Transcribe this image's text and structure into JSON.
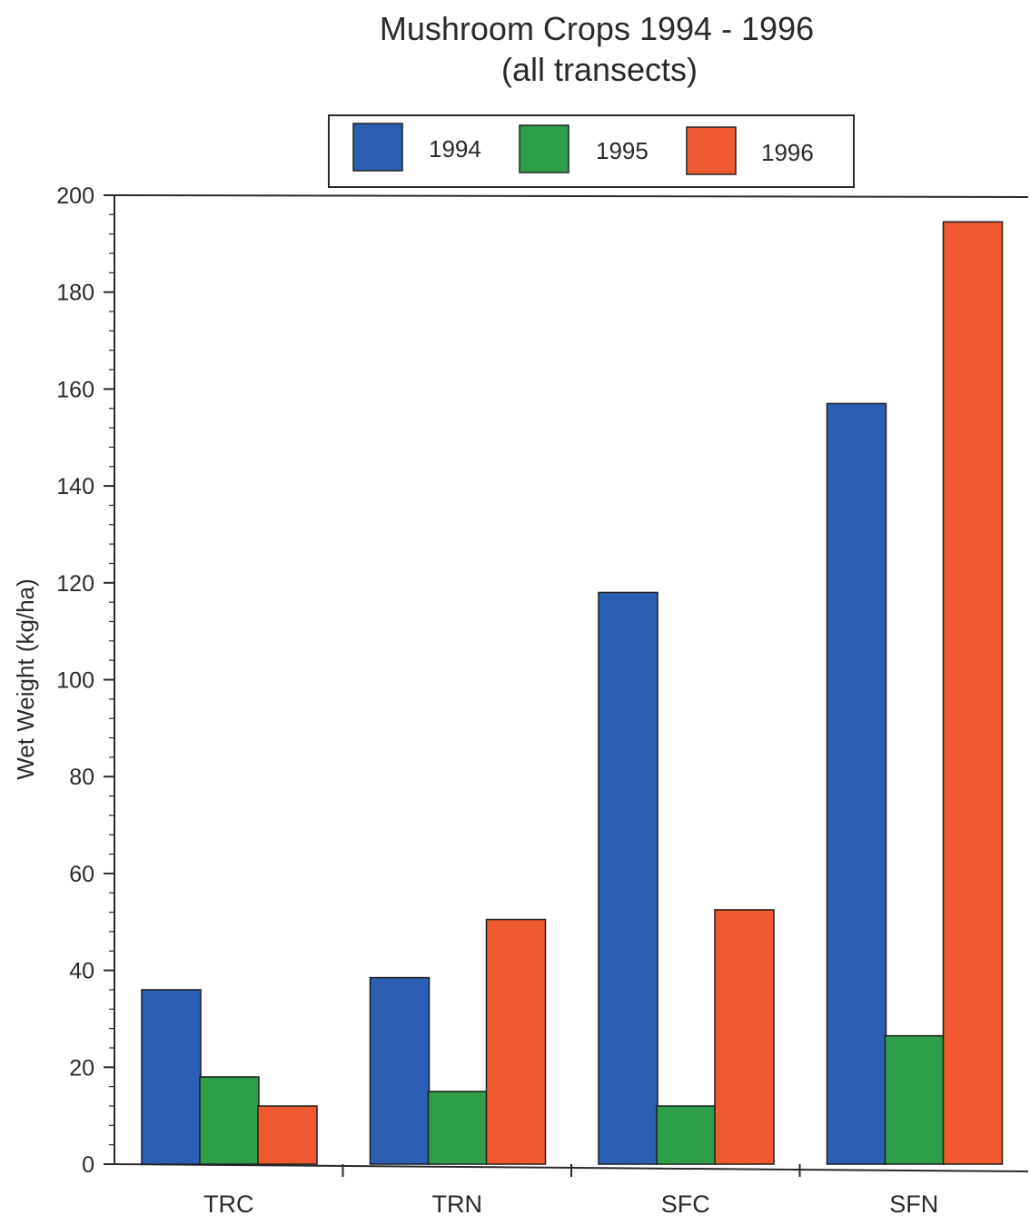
{
  "chart_data": {
    "type": "bar",
    "title": "Mushroom Crops 1994 - 1996",
    "subtitle": "(all transects)",
    "xlabel": "",
    "ylabel": "Wet Weight (kg/ha)",
    "ylim": [
      0,
      200
    ],
    "yticks": [
      0,
      20,
      40,
      60,
      80,
      100,
      120,
      140,
      160,
      180,
      200
    ],
    "grid": false,
    "legend_position": "top",
    "categories": [
      "TRC",
      "TRN",
      "SFC",
      "SFN"
    ],
    "series": [
      {
        "name": "1994",
        "color": "#2b5fb4",
        "values": [
          36,
          38.5,
          118,
          157
        ]
      },
      {
        "name": "1995",
        "color": "#2e9e48",
        "values": [
          18,
          15,
          12,
          26.5
        ]
      },
      {
        "name": "1996",
        "color": "#f05a30",
        "values": [
          12,
          50.5,
          52.5,
          194.5
        ]
      }
    ]
  }
}
